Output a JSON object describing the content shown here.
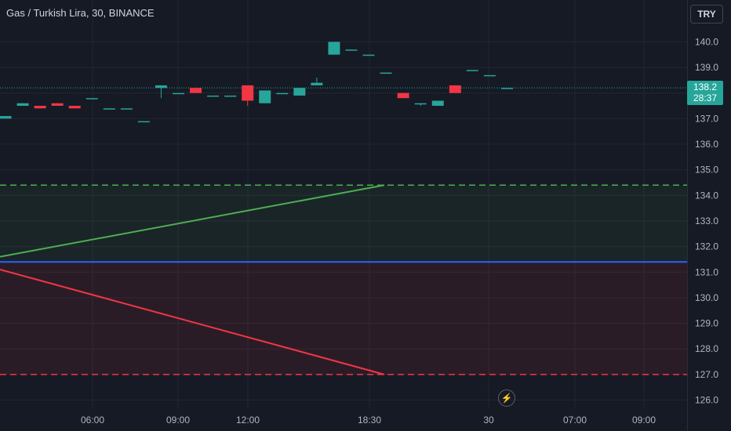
{
  "header": {
    "title": "Gas / Turkish Lira, 30, BINANCE",
    "currency_label": "TRY"
  },
  "price_tag": {
    "price": "138.2",
    "countdown": "28:37",
    "color": "#26a69a"
  },
  "icons": {
    "bolt": "lightning-icon"
  },
  "colors": {
    "up": "#26a69a",
    "down": "#f23645",
    "profit_line": "#4caf50",
    "loss_line": "#f23645",
    "entry_line": "#2962ff",
    "background": "#161a25"
  },
  "chart_data": {
    "type": "candlestick",
    "symbol": "Gas / Turkish Lira",
    "interval": "30",
    "exchange": "BINANCE",
    "ylim": [
      125.8,
      141.2
    ],
    "yticks": [
      "126.0",
      "127.0",
      "128.0",
      "129.0",
      "130.0",
      "131.0",
      "132.0",
      "133.0",
      "134.0",
      "135.0",
      "136.0",
      "137.0",
      "138.0",
      "139.0",
      "140.0"
    ],
    "xticks": [
      "06:00",
      "09:00",
      "12:00",
      "18:30",
      "30",
      "07:00",
      "09:00"
    ],
    "current_price": 138.2,
    "candles": [
      {
        "o": 137.0,
        "h": 137.1,
        "l": 137.0,
        "c": 137.1
      },
      {
        "o": 137.5,
        "h": 137.6,
        "l": 137.5,
        "c": 137.6
      },
      {
        "o": 137.5,
        "h": 137.5,
        "l": 137.4,
        "c": 137.4
      },
      {
        "o": 137.6,
        "h": 137.6,
        "l": 137.5,
        "c": 137.5
      },
      {
        "o": 137.5,
        "h": 137.5,
        "l": 137.4,
        "c": 137.4
      },
      {
        "o": 137.8,
        "h": 137.8,
        "l": 137.8,
        "c": 137.8
      },
      {
        "o": 137.4,
        "h": 137.4,
        "l": 137.4,
        "c": 137.4
      },
      {
        "o": 137.4,
        "h": 137.4,
        "l": 137.4,
        "c": 137.4
      },
      {
        "o": 136.9,
        "h": 136.9,
        "l": 136.9,
        "c": 136.9
      },
      {
        "o": 138.2,
        "h": 138.3,
        "l": 137.8,
        "c": 138.3
      },
      {
        "o": 138.0,
        "h": 138.0,
        "l": 138.0,
        "c": 138.0
      },
      {
        "o": 138.2,
        "h": 138.2,
        "l": 138.0,
        "c": 138.0
      },
      {
        "o": 137.9,
        "h": 137.9,
        "l": 137.9,
        "c": 137.9
      },
      {
        "o": 137.9,
        "h": 137.9,
        "l": 137.9,
        "c": 137.9
      },
      {
        "o": 138.3,
        "h": 138.3,
        "l": 137.5,
        "c": 137.7
      },
      {
        "o": 137.6,
        "h": 138.1,
        "l": 137.6,
        "c": 138.1
      },
      {
        "o": 138.0,
        "h": 138.0,
        "l": 138.0,
        "c": 138.0
      },
      {
        "o": 137.9,
        "h": 138.2,
        "l": 137.9,
        "c": 138.2
      },
      {
        "o": 138.3,
        "h": 138.6,
        "l": 138.3,
        "c": 138.4
      },
      {
        "o": 139.5,
        "h": 140.0,
        "l": 139.5,
        "c": 140.0
      },
      {
        "o": 139.7,
        "h": 139.7,
        "l": 139.7,
        "c": 139.7
      },
      {
        "o": 139.5,
        "h": 139.5,
        "l": 139.5,
        "c": 139.5
      },
      {
        "o": 138.8,
        "h": 138.8,
        "l": 138.8,
        "c": 138.8
      },
      {
        "o": 138.0,
        "h": 138.0,
        "l": 137.8,
        "c": 137.8
      },
      {
        "o": 137.6,
        "h": 137.6,
        "l": 137.5,
        "c": 137.6
      },
      {
        "o": 137.5,
        "h": 137.7,
        "l": 137.5,
        "c": 137.7
      },
      {
        "o": 138.3,
        "h": 138.3,
        "l": 138.0,
        "c": 138.0
      },
      {
        "o": 138.9,
        "h": 138.9,
        "l": 138.9,
        "c": 138.9
      },
      {
        "o": 138.7,
        "h": 138.7,
        "l": 138.7,
        "c": 138.7
      },
      {
        "o": 138.2,
        "h": 138.2,
        "l": 138.2,
        "c": 138.2
      }
    ],
    "position": {
      "entry": 131.4,
      "take_profit": 134.4,
      "stop_loss": 127.0,
      "profit_path": [
        131.6,
        134.4
      ],
      "loss_path": [
        131.1,
        127.0
      ]
    },
    "grid": true
  }
}
